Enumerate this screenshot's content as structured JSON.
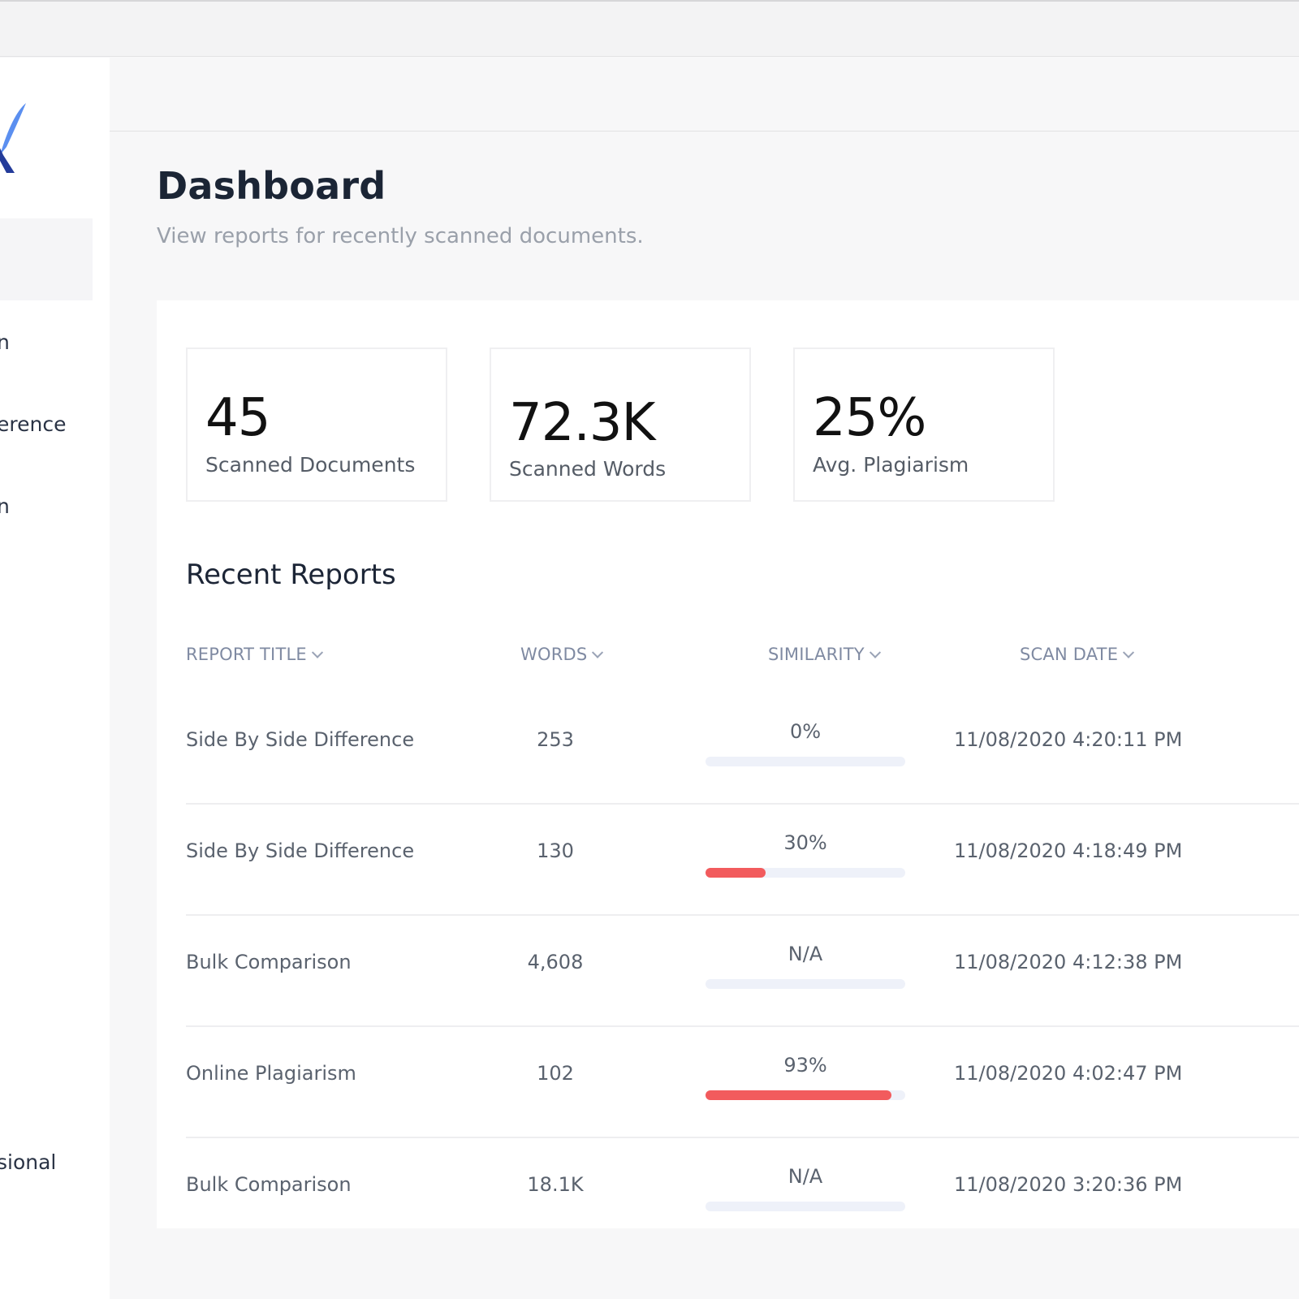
{
  "colors": {
    "background": "#f7f7f8",
    "panel": "#ffffff",
    "accent_red": "#f25b5d",
    "track": "#eef1f9",
    "logo_blue": "#3a5bd9"
  },
  "sidebar": {
    "logo_icon": "logo-icon",
    "items": [
      {
        "label": "n"
      },
      {
        "label": "erence"
      },
      {
        "label": "n"
      },
      {
        "label": "sional"
      }
    ]
  },
  "header": {
    "title": "Dashboard",
    "subtitle": "View reports for recently scanned documents."
  },
  "stats": [
    {
      "value": "45",
      "label": "Scanned Documents"
    },
    {
      "value": "72.3K",
      "label": "Scanned Words"
    },
    {
      "value": "25%",
      "label": "Avg. Plagiarism"
    }
  ],
  "recent": {
    "title": "Recent Reports",
    "columns": [
      "REPORT TITLE",
      "WORDS",
      "SIMILARITY",
      "SCAN DATE"
    ],
    "rows": [
      {
        "title": "Side By Side Difference",
        "words": "253",
        "similarity": "0%",
        "similarity_fraction": 0.0,
        "date": "11/08/2020 4:20:11 PM"
      },
      {
        "title": "Side By Side Difference",
        "words": "130",
        "similarity": "30%",
        "similarity_fraction": 0.3,
        "date": "11/08/2020 4:18:49 PM"
      },
      {
        "title": "Bulk Comparison",
        "words": "4,608",
        "similarity": "N/A",
        "similarity_fraction": 0.0,
        "date": "11/08/2020 4:12:38 PM"
      },
      {
        "title": "Online Plagiarism",
        "words": "102",
        "similarity": "93%",
        "similarity_fraction": 0.93,
        "date": "11/08/2020 4:02:47 PM"
      },
      {
        "title": "Bulk Comparison",
        "words": "18.1K",
        "similarity": "N/A",
        "similarity_fraction": 0.0,
        "date": "11/08/2020 3:20:36 PM"
      }
    ]
  }
}
